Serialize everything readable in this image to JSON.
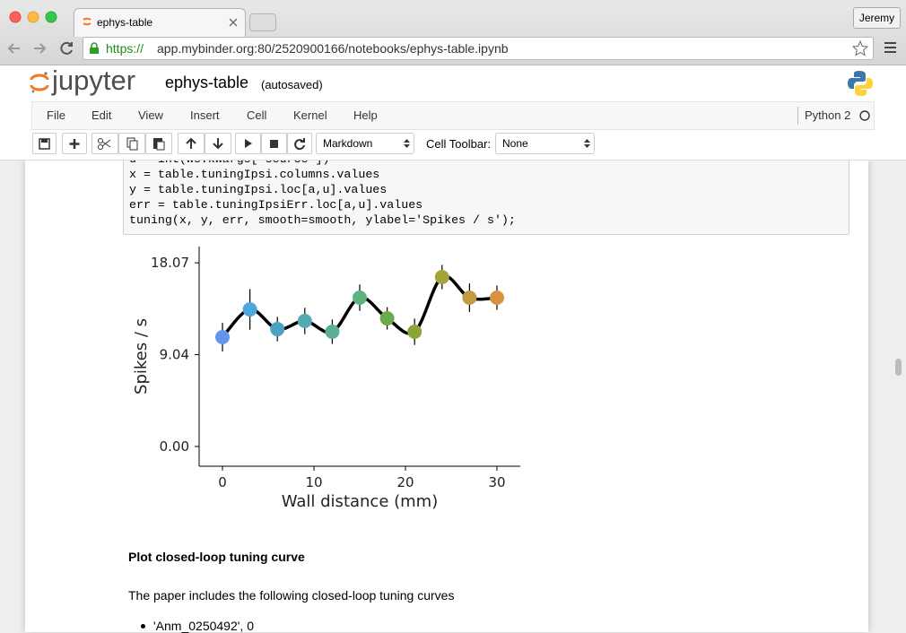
{
  "browser": {
    "tab_title": "ephys-table",
    "user": "Jeremy",
    "url_scheme": "https://",
    "url_rest": "app.mybinder.org:80/2520900166/notebooks/ephys-table.ipynb"
  },
  "notebook": {
    "logo_text": "jupyter",
    "name": "ephys-table",
    "status": "(autosaved)",
    "menu": [
      "File",
      "Edit",
      "View",
      "Insert",
      "Cell",
      "Kernel",
      "Help"
    ],
    "kernel": "Python 2",
    "cell_type": "Markdown",
    "cell_toolbar_label": "Cell Toolbar:",
    "cell_toolbar_value": "None",
    "code_lines": [
      "u = int(ws.kwargs['source'])",
      "x = table.tuningIpsi.columns.values",
      "y = table.tuningIpsi.loc[a,u].values",
      "err = table.tuningIpsiErr.loc[a,u].values",
      "tuning(x, y, err, smooth=smooth, ylabel='Spikes / s');"
    ],
    "markdown": {
      "heading": "Plot closed-loop tuning curve",
      "paragraph": "The paper includes the following closed-loop tuning curves",
      "list": [
        "'Anm_0250492', 0"
      ]
    }
  },
  "chart_data": {
    "type": "line",
    "x_label": "Wall distance (mm)",
    "y_label": "Spikes / s",
    "x": [
      0,
      3,
      6,
      9,
      12,
      15,
      18,
      21,
      24,
      27,
      30
    ],
    "series": [
      {
        "color": "#000000",
        "values": [
          10.76,
          13.49,
          11.55,
          12.35,
          11.29,
          14.64,
          12.61,
          11.29,
          16.67,
          14.64,
          14.64
        ],
        "errors": [
          1.4,
          2.0,
          1.2,
          1.3,
          1.2,
          1.3,
          1.1,
          1.3,
          1.2,
          1.4,
          1.2
        ],
        "point_colors": [
          "#6495ed",
          "#4ea6dc",
          "#4aa3c2",
          "#54aab0",
          "#5aae9a",
          "#5cb37e",
          "#6aab4c",
          "#8aa637",
          "#a8a23a",
          "#c39b40",
          "#d79240"
        ]
      }
    ],
    "xlim": [
      -2.55,
      32.55
    ],
    "ylim": [
      -1.94,
      19.67
    ],
    "xticks": [
      0,
      10,
      20,
      30
    ],
    "yticks": [
      {
        "value": 0,
        "label": "0.00"
      },
      9.04,
      18.07
    ],
    "smooth": true
  }
}
